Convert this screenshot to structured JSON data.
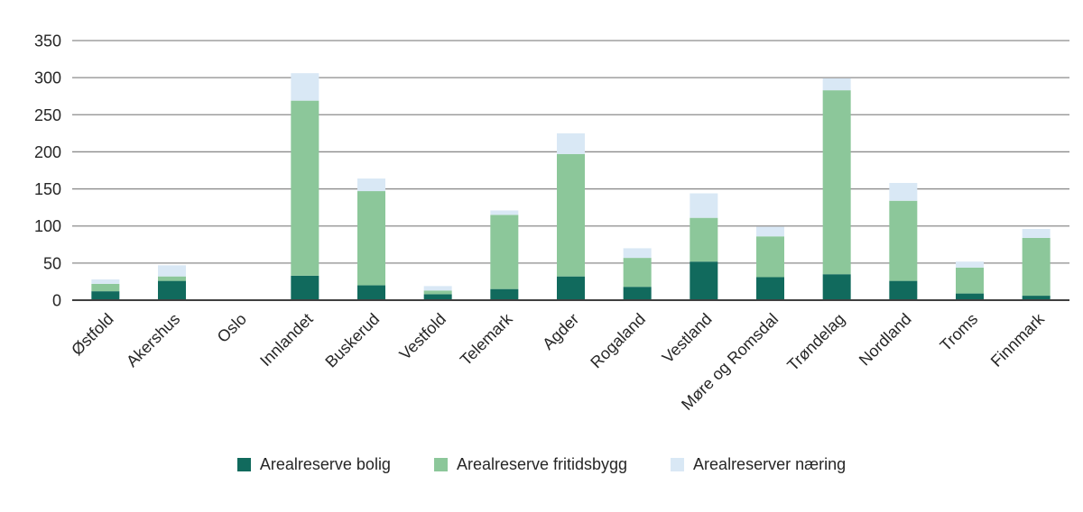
{
  "chart_data": {
    "type": "bar",
    "stacked": true,
    "title": "",
    "xlabel": "",
    "ylabel": "",
    "ylim": [
      0,
      350
    ],
    "yticks": [
      0,
      50,
      100,
      150,
      200,
      250,
      300,
      350
    ],
    "grid": true,
    "legend_position": "bottom",
    "categories": [
      "Østfold",
      "Akershus",
      "Oslo",
      "Innlandet",
      "Buskerud",
      "Vestfold",
      "Telemark",
      "Agder",
      "Rogaland",
      "Vestland",
      "Møre og Romsdal",
      "Trøndelag",
      "Nordland",
      "Troms",
      "Finnmark"
    ],
    "series": [
      {
        "name": "Arealreserve bolig",
        "color": "#116a5d",
        "values": [
          12,
          26,
          0,
          33,
          20,
          8,
          15,
          32,
          18,
          52,
          31,
          35,
          26,
          9,
          6
        ]
      },
      {
        "name": "Arealreserve fritidsbygg",
        "color": "#8cc79a",
        "values": [
          10,
          6,
          0,
          236,
          127,
          5,
          100,
          165,
          39,
          59,
          55,
          248,
          108,
          35,
          78
        ]
      },
      {
        "name": "Arealreserver næring",
        "color": "#d9e8f5",
        "values": [
          6,
          15,
          0,
          37,
          17,
          6,
          6,
          28,
          13,
          33,
          13,
          16,
          24,
          8,
          12
        ]
      }
    ],
    "colors": {
      "grid": "#8c8c8c",
      "axis": "#3f3f3f",
      "text": "#262626"
    }
  }
}
